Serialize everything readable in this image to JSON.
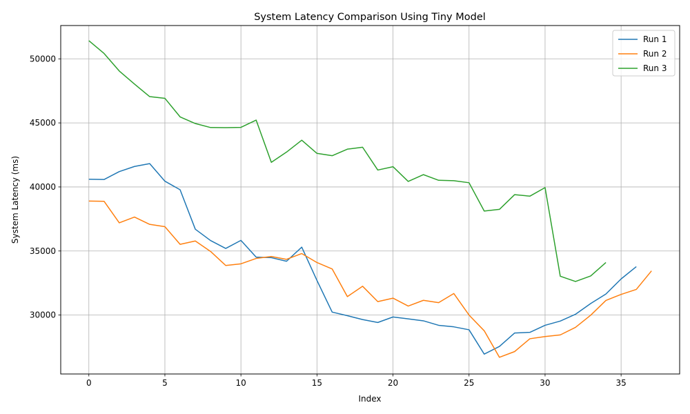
{
  "chart_data": {
    "type": "line",
    "title": "System Latency Comparison Using Tiny Model",
    "xlabel": "Index",
    "ylabel": "System Latency (ms)",
    "xlim": [
      -1.85,
      38.85
    ],
    "ylim": [
      25400,
      52600
    ],
    "xticks": [
      0,
      5,
      10,
      15,
      20,
      25,
      30,
      35
    ],
    "yticks": [
      30000,
      35000,
      40000,
      45000,
      50000
    ],
    "grid": true,
    "legend_position": "top-right",
    "series": [
      {
        "name": "Run 1",
        "color": "#1f77b4",
        "values": [
          40600,
          40580,
          41200,
          41600,
          41820,
          40450,
          39780,
          36700,
          35820,
          35200,
          35830,
          34520,
          34480,
          34200,
          35300,
          32700,
          30230,
          29950,
          29650,
          29420,
          29850,
          29700,
          29550,
          29200,
          29080,
          28850,
          26950,
          27550,
          28600,
          28650,
          29200,
          29530,
          30060,
          30900,
          31640,
          32820,
          33780
        ]
      },
      {
        "name": "Run 2",
        "color": "#ff7f0e",
        "values": [
          38900,
          38880,
          37200,
          37650,
          37080,
          36900,
          35520,
          35780,
          34970,
          33870,
          34000,
          34420,
          34570,
          34350,
          34800,
          34100,
          33600,
          31440,
          32250,
          31050,
          31320,
          30700,
          31150,
          30970,
          31680,
          30000,
          28770,
          26700,
          27150,
          28150,
          28320,
          28450,
          29040,
          29990,
          31140,
          31610,
          32000,
          33450
        ]
      },
      {
        "name": "Run 3",
        "color": "#2ca02c",
        "values": [
          51420,
          50420,
          49050,
          48030,
          47050,
          46920,
          45470,
          44950,
          44640,
          44630,
          44650,
          45220,
          41920,
          42720,
          43650,
          42620,
          42440,
          42950,
          43100,
          41320,
          41580,
          40430,
          40960,
          40520,
          40490,
          40330,
          38120,
          38250,
          39400,
          39280,
          39950,
          33030,
          32620,
          33050,
          34100
        ]
      }
    ]
  }
}
